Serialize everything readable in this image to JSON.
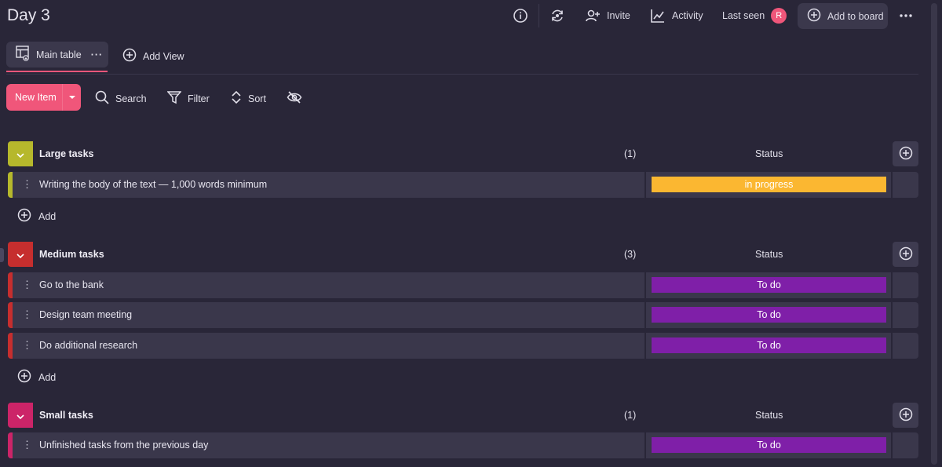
{
  "header": {
    "title": "Day 3",
    "invite_label": "Invite",
    "activity_label": "Activity",
    "last_seen_label": "Last seen",
    "avatar_initial": "R",
    "add_to_board_label": "Add to board"
  },
  "views": {
    "main_table_label": "Main table",
    "add_view_label": "Add View"
  },
  "toolbar": {
    "new_item_label": "New Item",
    "search_label": "Search",
    "filter_label": "Filter",
    "sort_label": "Sort"
  },
  "colors": {
    "accent": "#f0567a",
    "large": "#b6b82c",
    "medium": "#c62e2e",
    "small": "#cc2468",
    "status_in_progress": "#fbb731",
    "status_todo": "#7f1fa8"
  },
  "groups": [
    {
      "title": "Large tasks",
      "count": "(1)",
      "status_header": "Status",
      "add_label": "Add",
      "items": [
        {
          "name": "Writing the body of the text — 1,000 words minimum",
          "status": "in progress"
        }
      ]
    },
    {
      "title": "Medium tasks",
      "count": "(3)",
      "status_header": "Status",
      "add_label": "Add",
      "items": [
        {
          "name": "Go to the bank",
          "status": "To do"
        },
        {
          "name": "Design team meeting",
          "status": "To do"
        },
        {
          "name": "Do additional research",
          "status": "To do"
        }
      ]
    },
    {
      "title": "Small tasks",
      "count": "(1)",
      "status_header": "Status",
      "items": [
        {
          "name": "Unfinished tasks from the previous day",
          "status": "To do"
        }
      ]
    }
  ]
}
